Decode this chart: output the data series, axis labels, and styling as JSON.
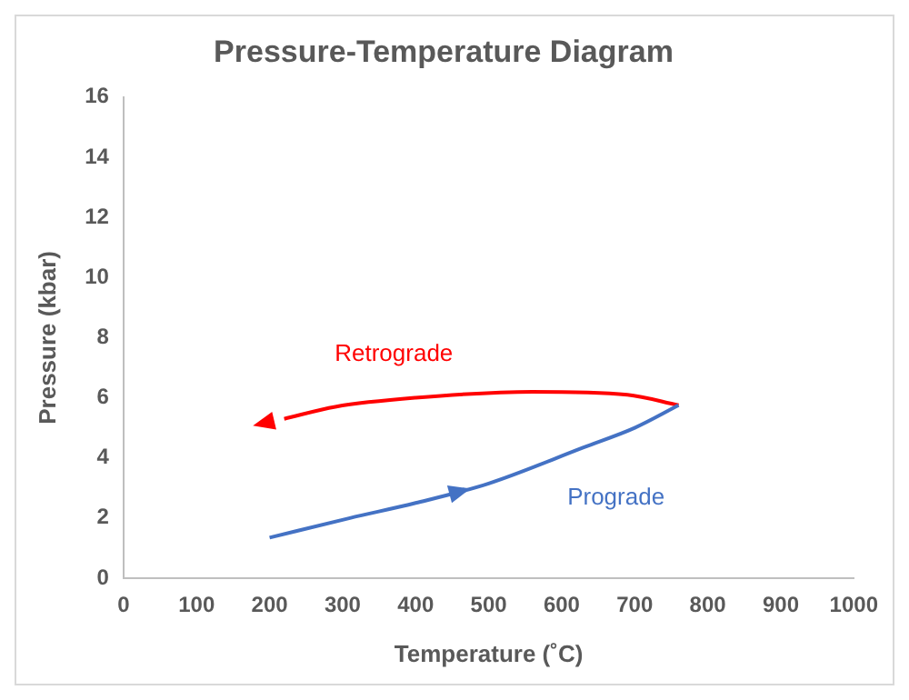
{
  "chart_data": {
    "type": "line",
    "title": "Pressure-Temperature Diagram",
    "xlabel": "Temperature (˚C)",
    "ylabel": "Pressure (kbar)",
    "xlim": [
      0,
      1000
    ],
    "xticks": [
      0,
      100,
      200,
      300,
      400,
      500,
      600,
      700,
      800,
      900,
      1000
    ],
    "ylim": [
      0,
      16
    ],
    "yticks": [
      0,
      2,
      4,
      6,
      8,
      10,
      12,
      14,
      16
    ],
    "grid": false,
    "legend": false,
    "marker": "none",
    "line_style": "solid",
    "series": [
      {
        "name": "Prograde",
        "color": "#4472c4",
        "x": [
          200,
          310,
          400,
          500,
          630,
          700,
          760
        ],
        "values": [
          1.35,
          2.0,
          2.5,
          3.15,
          4.35,
          5.0,
          5.75
        ]
      },
      {
        "name": "Retrograde",
        "color": "#ff0000",
        "x": [
          760,
          690,
          560,
          400,
          290,
          220
        ],
        "values": [
          5.75,
          6.1,
          6.2,
          6.0,
          5.7,
          5.3
        ]
      }
    ]
  }
}
